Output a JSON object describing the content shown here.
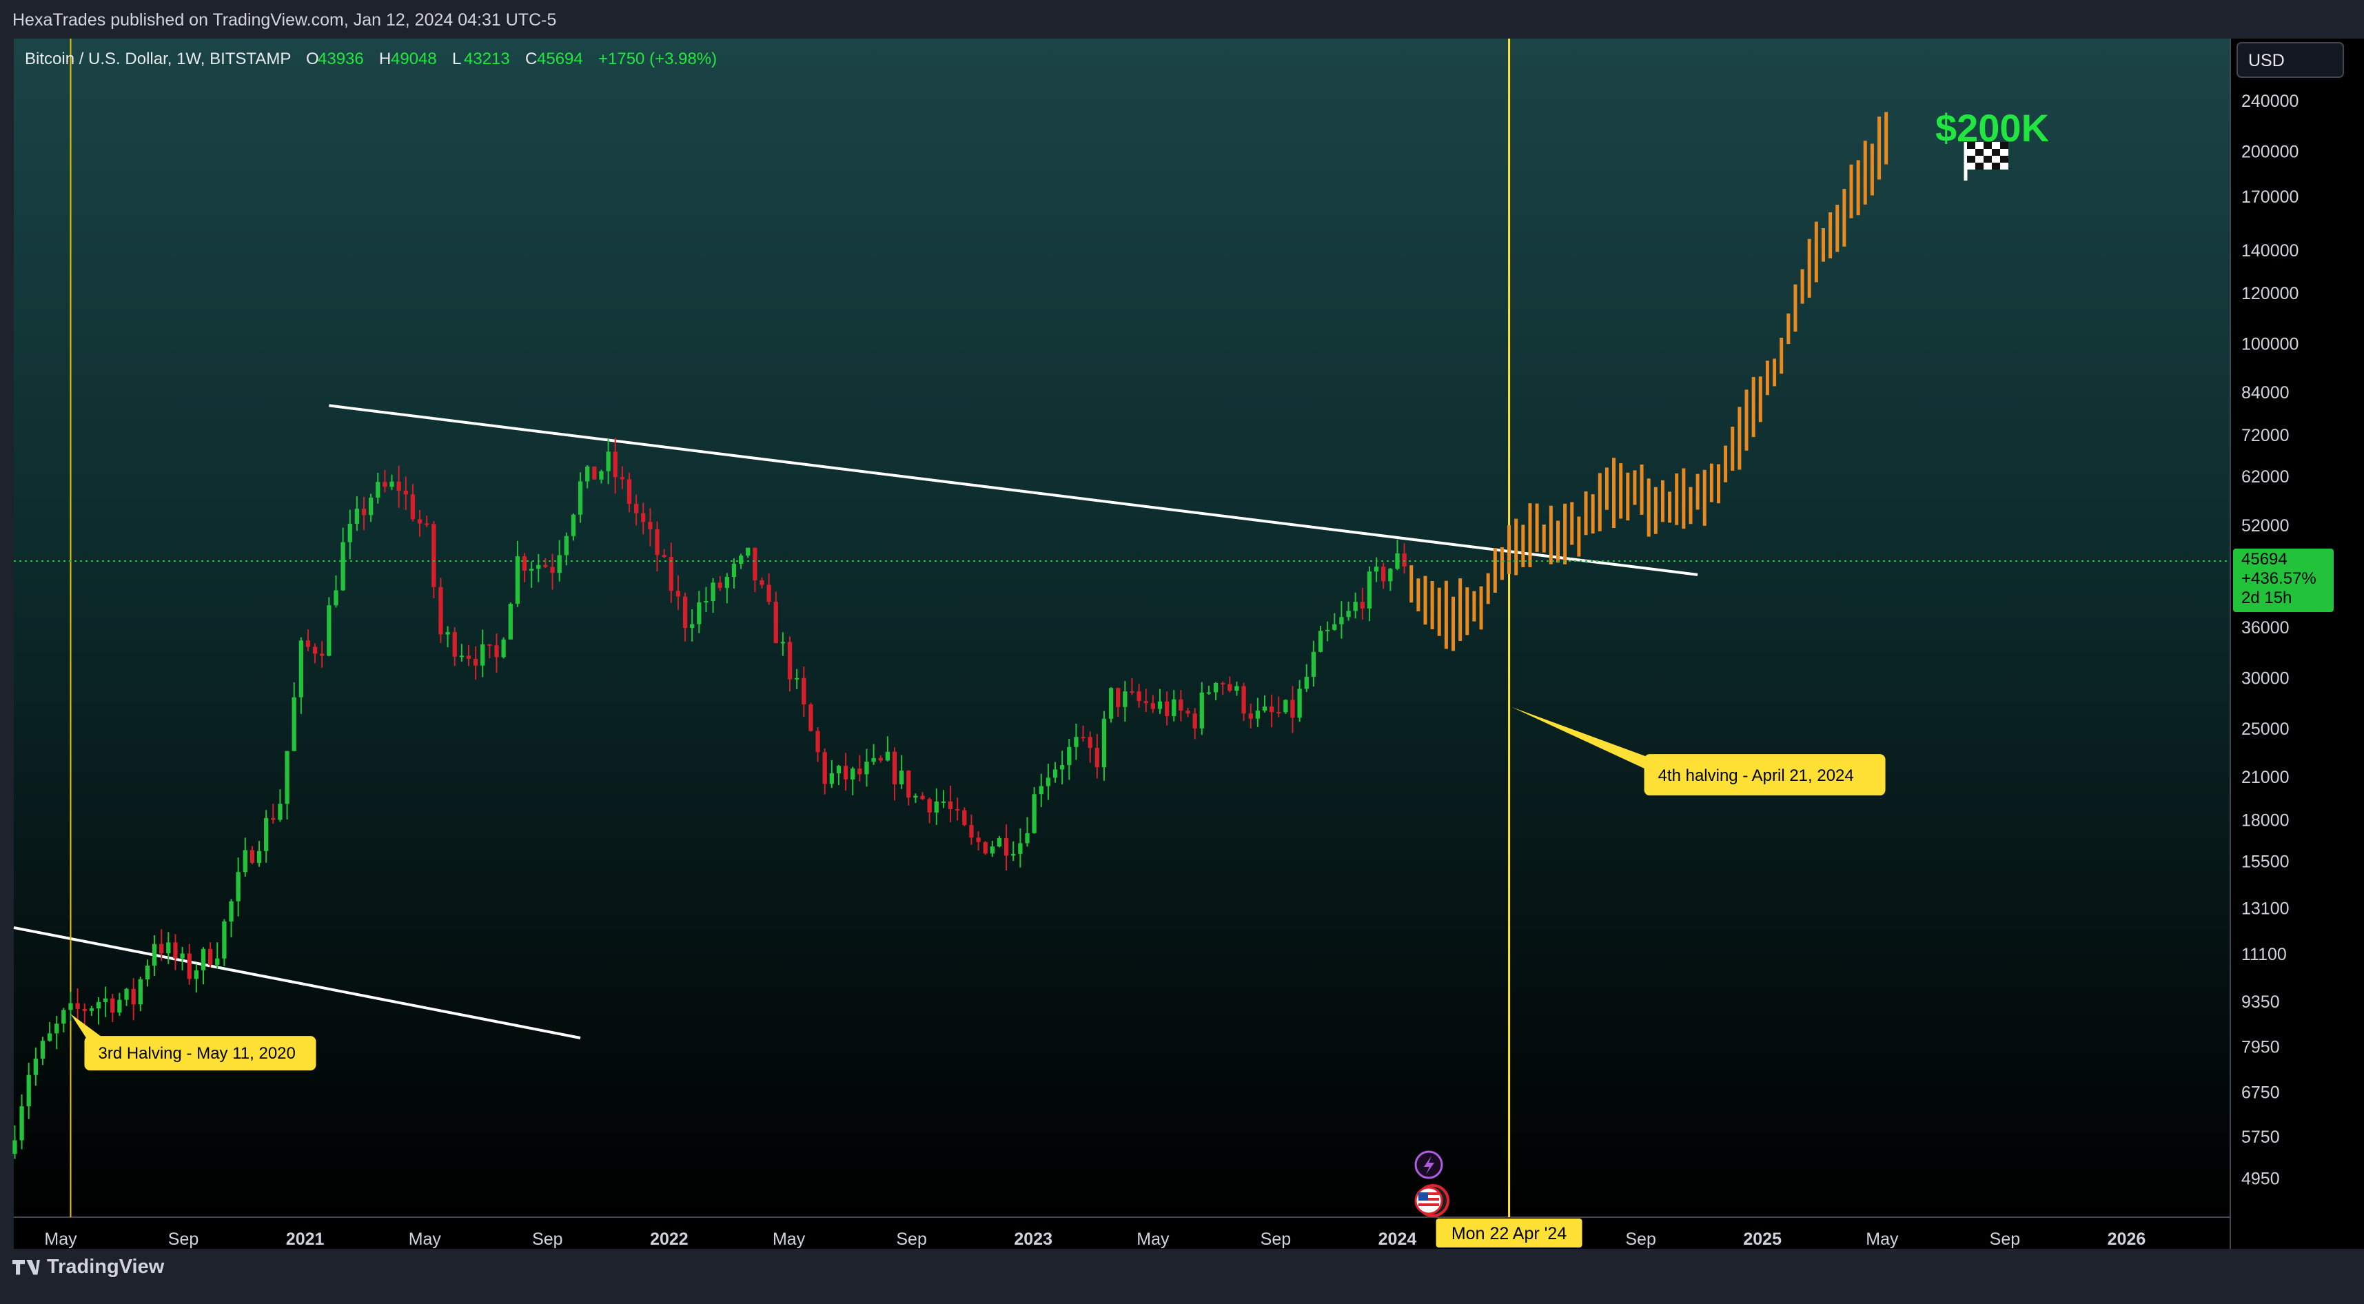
{
  "header": {
    "publisher": "HexaTrades published on TradingView.com, Jan 12, 2024 04:31 UTC-5"
  },
  "footer": {
    "brand": "TradingView"
  },
  "chart_data": {
    "type": "candlestick",
    "scale": "log",
    "symbol": "Bitcoin / U.S. Dollar, 1W, BITSTAMP",
    "ohlc_legend": [
      {
        "label": "O",
        "value": "43936"
      },
      {
        "label": "H",
        "value": "49048"
      },
      {
        "label": "L",
        "value": "43213"
      },
      {
        "label": "C",
        "value": "45694"
      }
    ],
    "change": "+1750 (+3.98%)",
    "currency": "USD",
    "xlim": [
      "2020-03-15",
      "2026-04-15"
    ],
    "ylim": [
      4300,
      300000
    ],
    "y_ticks": [
      240000,
      200000,
      170000,
      140000,
      120000,
      100000,
      84000,
      72000,
      62000,
      52000,
      36000,
      30000,
      25000,
      21000,
      18000,
      15500,
      13100,
      11100,
      9350,
      7950,
      6750,
      5750,
      4950
    ],
    "x_ticks": [
      {
        "label": "May",
        "date": "2020-05-01",
        "bold": false
      },
      {
        "label": "Sep",
        "date": "2020-09-01",
        "bold": false
      },
      {
        "label": "2021",
        "date": "2021-01-01",
        "bold": true
      },
      {
        "label": "May",
        "date": "2021-05-01",
        "bold": false
      },
      {
        "label": "Sep",
        "date": "2021-09-01",
        "bold": false
      },
      {
        "label": "2022",
        "date": "2022-01-01",
        "bold": true
      },
      {
        "label": "May",
        "date": "2022-05-01",
        "bold": false
      },
      {
        "label": "Sep",
        "date": "2022-09-01",
        "bold": false
      },
      {
        "label": "2023",
        "date": "2023-01-01",
        "bold": true
      },
      {
        "label": "May",
        "date": "2023-05-01",
        "bold": false
      },
      {
        "label": "Sep",
        "date": "2023-09-01",
        "bold": false
      },
      {
        "label": "2024",
        "date": "2024-01-01",
        "bold": true
      },
      {
        "label": "Sep",
        "date": "2024-09-01",
        "bold": false
      },
      {
        "label": "2025",
        "date": "2025-01-01",
        "bold": true
      },
      {
        "label": "May",
        "date": "2025-05-01",
        "bold": false
      },
      {
        "label": "Sep",
        "date": "2025-09-01",
        "bold": false
      },
      {
        "label": "2026",
        "date": "2026-01-01",
        "bold": true
      }
    ],
    "cursor_date_label": "Mon 22 Apr '24",
    "cursor_date": "2024-04-22",
    "last_price": {
      "value": 45694,
      "label": "45694",
      "change_pct": "+436.57%",
      "countdown": "2d 15h"
    },
    "price_path": [
      [
        "2020-03-16",
        5400
      ],
      [
        "2020-04-06",
        7300
      ],
      [
        "2020-05-11",
        8800
      ],
      [
        "2020-06-15",
        9400
      ],
      [
        "2020-07-20",
        9400
      ],
      [
        "2020-08-10",
        11700
      ],
      [
        "2020-09-14",
        10400
      ],
      [
        "2020-10-12",
        11400
      ],
      [
        "2020-11-09",
        15500
      ],
      [
        "2020-12-14",
        19300
      ],
      [
        "2021-01-04",
        33000
      ],
      [
        "2021-01-25",
        34000
      ],
      [
        "2021-02-15",
        48000
      ],
      [
        "2021-03-15",
        58000
      ],
      [
        "2021-04-12",
        60000
      ],
      [
        "2021-05-10",
        50000
      ],
      [
        "2021-05-24",
        35000
      ],
      [
        "2021-06-21",
        33000
      ],
      [
        "2021-07-19",
        32000
      ],
      [
        "2021-08-09",
        46000
      ],
      [
        "2021-09-13",
        45000
      ],
      [
        "2021-10-11",
        60000
      ],
      [
        "2021-11-08",
        65000
      ],
      [
        "2021-11-29",
        57000
      ],
      [
        "2021-12-27",
        47000
      ],
      [
        "2022-01-24",
        37000
      ],
      [
        "2022-03-28",
        46000
      ],
      [
        "2022-05-09",
        31000
      ],
      [
        "2022-06-13",
        21000
      ],
      [
        "2022-07-11",
        21000
      ],
      [
        "2022-08-15",
        22000
      ],
      [
        "2022-09-12",
        19500
      ],
      [
        "2022-10-10",
        19200
      ],
      [
        "2022-11-07",
        16500
      ],
      [
        "2022-12-26",
        16700
      ],
      [
        "2023-01-16",
        21000
      ],
      [
        "2023-02-20",
        23500
      ],
      [
        "2023-03-13",
        22500
      ],
      [
        "2023-03-27",
        28000
      ],
      [
        "2023-05-15",
        27000
      ],
      [
        "2023-06-19",
        26000
      ],
      [
        "2023-07-10",
        30500
      ],
      [
        "2023-08-21",
        26000
      ],
      [
        "2023-09-25",
        26500
      ],
      [
        "2023-10-23",
        34000
      ],
      [
        "2023-11-20",
        37500
      ],
      [
        "2023-12-11",
        42000
      ],
      [
        "2024-01-08",
        45694
      ]
    ],
    "projection_path": [
      [
        "2024-01-15",
        42000
      ],
      [
        "2024-02-05",
        39000
      ],
      [
        "2024-02-26",
        37000
      ],
      [
        "2024-03-25",
        40000
      ],
      [
        "2024-04-15",
        45000
      ],
      [
        "2024-05-06",
        50000
      ],
      [
        "2024-06-03",
        49000
      ],
      [
        "2024-07-01",
        51000
      ],
      [
        "2024-07-29",
        58000
      ],
      [
        "2024-08-26",
        60000
      ],
      [
        "2024-09-16",
        55000
      ],
      [
        "2024-10-14",
        56000
      ],
      [
        "2024-11-04",
        58000
      ],
      [
        "2024-12-02",
        66000
      ],
      [
        "2024-12-23",
        80000
      ],
      [
        "2025-01-13",
        90000
      ],
      [
        "2025-02-03",
        115000
      ],
      [
        "2025-02-24",
        140000
      ],
      [
        "2025-03-17",
        150000
      ],
      [
        "2025-04-07",
        180000
      ],
      [
        "2025-04-28",
        200000
      ],
      [
        "2025-05-05",
        210000
      ]
    ],
    "trendlines": [
      {
        "from": [
          "2020-03-15",
          12200
        ],
        "to": [
          "2021-10-04",
          8200
        ],
        "color": "#ffffff"
      },
      {
        "from": [
          "2021-01-25",
          80000
        ],
        "to": [
          "2024-10-28",
          43500
        ],
        "color": "#ffffff"
      }
    ],
    "halvings": [
      {
        "date": "2020-05-11",
        "label": "3rd Halving - May 11, 2020",
        "color": "#e6c200"
      },
      {
        "date": "2024-04-22",
        "label": "4th halving - April 21, 2024",
        "color": "#ffe135"
      }
    ],
    "target": {
      "label": "$200K",
      "icon": "chequered-flag-icon",
      "color": "#22e640"
    },
    "colors": {
      "up": "#22c33b",
      "down": "#d61f2a",
      "projection": "#e88a1f",
      "grid": "none",
      "last_price_line": "#22c33b"
    }
  }
}
